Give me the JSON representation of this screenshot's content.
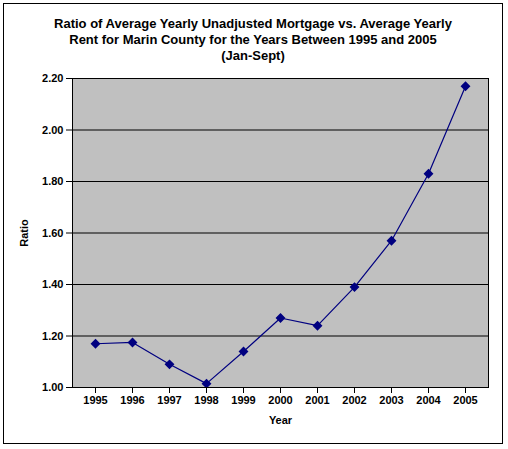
{
  "chart_data": {
    "type": "line",
    "title": "Ratio of Average Yearly Unadjusted Mortgage vs. Average Yearly Rent for Marin County for the Years Between 1995 and 2005 (Jan-Sept)",
    "x_label": "Year",
    "y_label": "Ratio",
    "categories": [
      "1995",
      "1996",
      "1997",
      "1998",
      "1999",
      "2000",
      "2001",
      "2002",
      "2003",
      "2004",
      "2005"
    ],
    "values": [
      1.17,
      1.175,
      1.09,
      1.015,
      1.14,
      1.27,
      1.24,
      1.39,
      1.57,
      1.83,
      2.17
    ],
    "color": "#000080",
    "marker": "diamond",
    "ylim": [
      1.0,
      2.2
    ],
    "yticks": [
      {
        "value": 1.0,
        "label": "1.00"
      },
      {
        "value": 1.2,
        "label": "1.20"
      },
      {
        "value": 1.4,
        "label": "1.40"
      },
      {
        "value": 1.6,
        "label": "1.60"
      },
      {
        "value": 1.8,
        "label": "1.80"
      },
      {
        "value": 2.0,
        "label": "2.00"
      },
      {
        "value": 2.2,
        "label": "2.20"
      }
    ],
    "grid": true
  }
}
